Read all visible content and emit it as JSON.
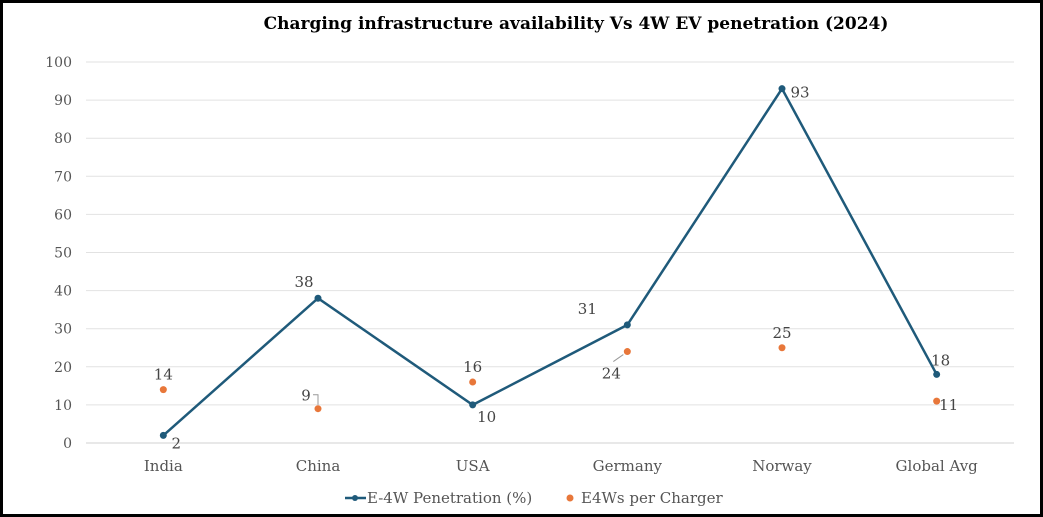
{
  "chart_data": {
    "type": "line",
    "title": "Charging infrastructure availability Vs 4W EV penetration (2024)",
    "xlabel": "",
    "ylabel": "",
    "categories": [
      "India",
      "China",
      "USA",
      "Germany",
      "Norway",
      "Global Avg"
    ],
    "ylim": [
      0,
      100
    ],
    "yticks": [
      0,
      10,
      20,
      30,
      40,
      50,
      60,
      70,
      80,
      90,
      100
    ],
    "grid": true,
    "legend_position": "bottom",
    "series": [
      {
        "name": "E-4W Penetration (%)",
        "kind": "line",
        "color": "#1f5a7a",
        "values": [
          2,
          38,
          10,
          31,
          93,
          18
        ]
      },
      {
        "name": "E4Ws per Charger",
        "kind": "scatter",
        "color": "#e8773a",
        "values": [
          14,
          9,
          16,
          24,
          25,
          11
        ]
      }
    ]
  }
}
